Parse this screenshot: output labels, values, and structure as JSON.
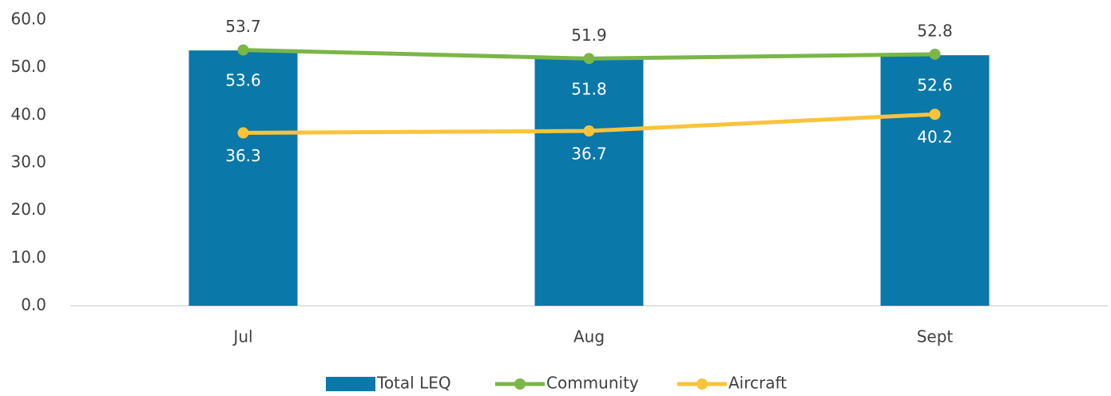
{
  "chart_data": {
    "type": "combo",
    "categories": [
      "Jul",
      "Aug",
      "Sept"
    ],
    "series": [
      {
        "name": "Total LEQ",
        "type": "bar",
        "color": "#0a78a8",
        "values": [
          53.6,
          51.8,
          52.6
        ]
      },
      {
        "name": "Community",
        "type": "line",
        "color": "#7ab648",
        "values": [
          53.7,
          51.9,
          52.8
        ]
      },
      {
        "name": "Aircraft",
        "type": "line",
        "color": "#f9c33c",
        "values": [
          36.3,
          36.7,
          40.2
        ]
      }
    ],
    "ylim": [
      0,
      60
    ],
    "yticks": [
      {
        "value": 0,
        "label": "0.0"
      },
      {
        "value": 10,
        "label": "10.0"
      },
      {
        "value": 20,
        "label": "20.0"
      },
      {
        "value": 30,
        "label": "30.0"
      },
      {
        "value": 40,
        "label": "40.0"
      },
      {
        "value": 50,
        "label": "50.0"
      },
      {
        "value": 60,
        "label": "60.0"
      }
    ],
    "grid": false,
    "legend": "bottom"
  }
}
